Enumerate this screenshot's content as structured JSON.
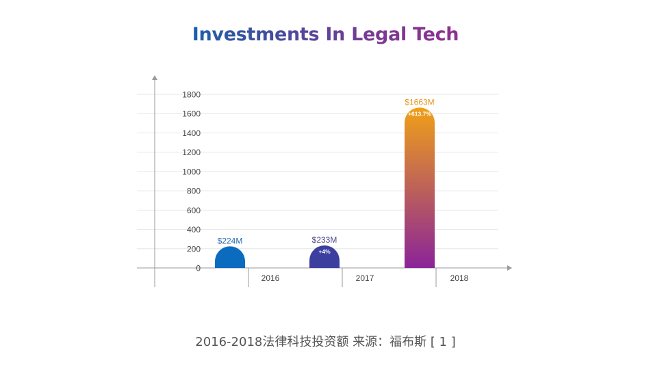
{
  "chart_data": {
    "type": "bar",
    "title": "Investments In Legal Tech",
    "categories": [
      "2016",
      "2017",
      "2018"
    ],
    "values": [
      224,
      233,
      1663
    ],
    "value_labels": [
      "$224M",
      "$233M",
      "$1663M"
    ],
    "growth_labels": [
      "",
      "+4%",
      "+613.7%"
    ],
    "ylim": [
      0,
      1800
    ],
    "yticks": [
      0,
      200,
      400,
      600,
      800,
      1000,
      1200,
      1400,
      1600,
      1800
    ],
    "grid": true,
    "legend": "none",
    "xlabel": "",
    "ylabel": ""
  },
  "caption": "2016-2018法律科技投资额  来源：福布斯 [ 1 ]",
  "colors": {
    "bar_2016": "#0b6cbf",
    "bar_2017": "#3c3f9e",
    "bar_2018_top": "#f0a018",
    "bar_2018_bottom": "#8b2499",
    "label_2016": "#2a6ab0",
    "label_2017": "#4a4a8a",
    "label_2018": "#e8961a",
    "axis": "#9a9a9a",
    "grid": "#e6e6e6",
    "tick_text": "#444444"
  }
}
